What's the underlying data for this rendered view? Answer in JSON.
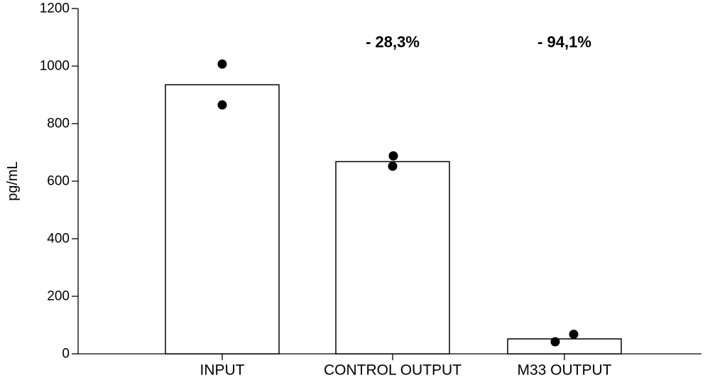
{
  "chart_data": {
    "type": "bar",
    "title": "",
    "xlabel": "",
    "ylabel": "pg/mL",
    "ylim": [
      0,
      1200
    ],
    "yticks": [
      0,
      200,
      400,
      600,
      800,
      1000,
      1200
    ],
    "categories": [
      "INPUT",
      "CONTROL OUTPUT",
      "M33 OUTPUT"
    ],
    "values": [
      935,
      668,
      52
    ],
    "points": [
      [
        1007,
        865
      ],
      [
        688,
        652
      ],
      [
        68,
        42
      ]
    ],
    "annotations": [
      "",
      "- 28,3%",
      "- 94,1%"
    ],
    "grid": false,
    "legend": "none",
    "colors": {
      "bar_fill": "#ffffff",
      "bar_edge": "#000000",
      "point": "#000000"
    }
  }
}
